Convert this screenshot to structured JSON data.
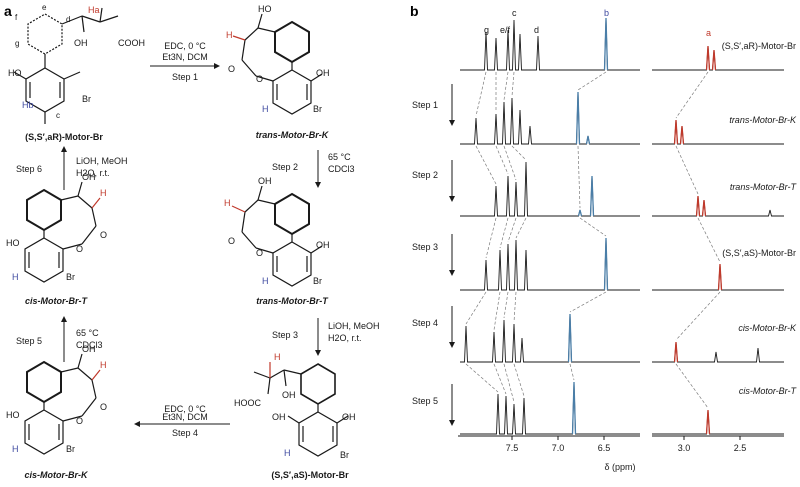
{
  "panels": {
    "a": "a",
    "b": "b"
  },
  "scheme": {
    "compounds": {
      "top_left": "(S,S′,aR)-Motor-Br",
      "top_right": "trans-Motor-Br-K",
      "mid_right": "trans-Motor-Br-T",
      "mid_left": "cis-Motor-Br-T",
      "bottom_left": "cis-Motor-Br-K",
      "bottom_right": "(S,S′,aS)-Motor-Br"
    },
    "steps": {
      "step1": {
        "label": "Step 1",
        "cond1": "EDC, 0 °C",
        "cond2": "Et3N, DCM"
      },
      "step2": {
        "label": "Step 2",
        "cond1": "65 °C",
        "cond2": "CDCl3"
      },
      "step3": {
        "label": "Step 3",
        "cond1": "LiOH, MeOH",
        "cond2": "H2O, r.t."
      },
      "step4": {
        "label": "Step 4",
        "cond1": "EDC, 0 °C",
        "cond2": "Et3N, DCM"
      },
      "step5": {
        "label": "Step 5",
        "cond1": "65 °C",
        "cond2": "CDCl3"
      },
      "step6": {
        "label": "Step 6",
        "cond1": "LiOH, MeOH",
        "cond2": "H2O, r.t."
      }
    },
    "atoms": {
      "oh": "OH",
      "ho": "HO",
      "br": "Br",
      "h": "H",
      "cooh": "COOH",
      "hooc": "HOOC",
      "o": "O",
      "ha": "Ha",
      "hb": "Hb",
      "c": "c",
      "d": "d",
      "e": "e",
      "f": "f",
      "g": "g"
    },
    "colors": {
      "blue": "#3f4aa0",
      "red": "#c0392b"
    }
  },
  "spectra": {
    "peak_labels": {
      "g": "g",
      "ef": "e/f",
      "c": "c",
      "d": "d",
      "b": "b",
      "a": "a"
    },
    "row_labels": [
      "(S,S′,aR)-Motor-Br",
      "trans-Motor-Br-K",
      "trans-Motor-Br-T",
      "(S,S′,aS)-Motor-Br",
      "cis-Motor-Br-K",
      "cis-Motor-Br-T"
    ],
    "step_labels": [
      "Step 1",
      "Step 2",
      "Step 3",
      "Step 4",
      "Step 5"
    ],
    "axis": {
      "ticks": [
        "7.5",
        "7.0",
        "6.5",
        "3.0",
        "2.5"
      ],
      "xlabel": "δ (ppm)"
    },
    "colors": {
      "black": "#1a1a1a",
      "blue": "#4a7ea8",
      "red": "#c0392b",
      "dash": "#7a7a7a"
    }
  }
}
